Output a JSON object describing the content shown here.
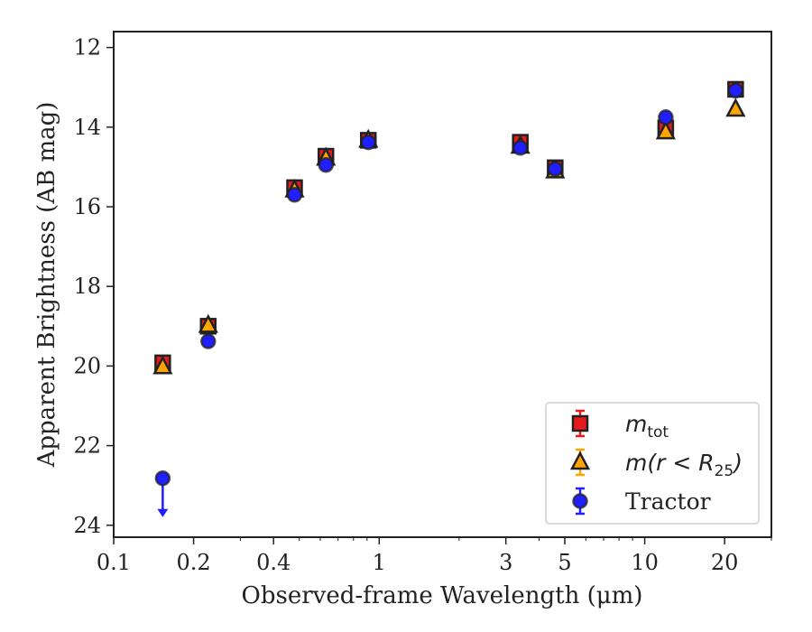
{
  "chart_data": {
    "type": "scatter",
    "xlabel": "Observed-frame Wavelength (μm)",
    "ylabel": "Apparent Brightness (AB mag)",
    "xscale": "log",
    "xlim": [
      0.1,
      30
    ],
    "ylim": [
      24.3,
      11.6
    ],
    "y_inverted": true,
    "x_tick_values": [
      0.1,
      0.2,
      0.4,
      1,
      3,
      5,
      10,
      20
    ],
    "x_tick_labels": [
      "0.1",
      "0.2",
      "0.4",
      "1",
      "3",
      "5",
      "10",
      "20"
    ],
    "y_tick_values": [
      12,
      14,
      16,
      18,
      20,
      22,
      24
    ],
    "y_tick_labels": [
      "12",
      "14",
      "16",
      "18",
      "20",
      "22",
      "24"
    ],
    "grid": false,
    "legend_position": "lower-right",
    "series": [
      {
        "name": "m_tot",
        "legend_main": "m",
        "legend_sub": "tot",
        "marker": "square",
        "color": "#e41a1c",
        "points": [
          {
            "x": 0.153,
            "y": 19.92
          },
          {
            "x": 0.227,
            "y": 19.0
          },
          {
            "x": 0.48,
            "y": 15.52
          },
          {
            "x": 0.63,
            "y": 14.73
          },
          {
            "x": 0.91,
            "y": 14.33
          },
          {
            "x": 3.4,
            "y": 14.38
          },
          {
            "x": 4.6,
            "y": 15.02
          },
          {
            "x": 12.0,
            "y": 14.02
          },
          {
            "x": 22.0,
            "y": 13.05
          }
        ]
      },
      {
        "name": "m(r < R25)",
        "legend_main": "m(r < R",
        "legend_sub": "25",
        "legend_close": ")",
        "marker": "triangle",
        "color": "#ffa500",
        "points": [
          {
            "x": 0.153,
            "y": 20.02
          },
          {
            "x": 0.227,
            "y": 18.98
          },
          {
            "x": 0.48,
            "y": 15.58
          },
          {
            "x": 0.63,
            "y": 14.78
          },
          {
            "x": 0.91,
            "y": 14.33
          },
          {
            "x": 3.4,
            "y": 14.48
          },
          {
            "x": 4.6,
            "y": 15.1
          },
          {
            "x": 12.0,
            "y": 14.12
          },
          {
            "x": 22.0,
            "y": 13.55
          }
        ]
      },
      {
        "name": "Tractor",
        "legend_main": "Tractor",
        "marker": "circle",
        "color": "#1f1fff",
        "points": [
          {
            "x": 0.153,
            "y": 22.82,
            "upper_limit": true
          },
          {
            "x": 0.227,
            "y": 19.38
          },
          {
            "x": 0.48,
            "y": 15.7
          },
          {
            "x": 0.63,
            "y": 14.95
          },
          {
            "x": 0.91,
            "y": 14.38
          },
          {
            "x": 3.4,
            "y": 14.52
          },
          {
            "x": 4.6,
            "y": 15.05
          },
          {
            "x": 12.0,
            "y": 13.75
          },
          {
            "x": 22.0,
            "y": 13.08
          }
        ]
      }
    ]
  }
}
